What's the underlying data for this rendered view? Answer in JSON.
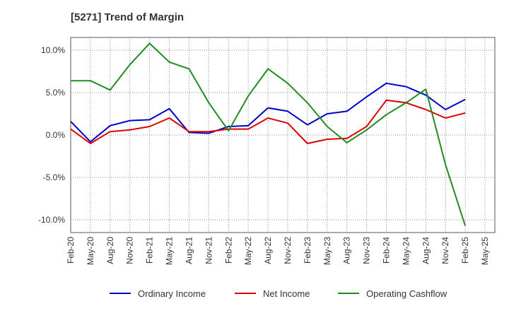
{
  "chart_data": {
    "type": "line",
    "title": "[5271]  Trend of Margin",
    "xlabel": "",
    "ylabel": "",
    "ylim": [
      -11.5,
      11.5
    ],
    "y_ticks": [
      10,
      5,
      0,
      -5,
      -10
    ],
    "y_tick_labels": [
      "10.0%",
      "5.0%",
      "0.0%",
      "-5.0%",
      "-10.0%"
    ],
    "grid": true,
    "legend_position": "bottom",
    "categories": [
      "Feb-20",
      "May-20",
      "Aug-20",
      "Nov-20",
      "Feb-21",
      "May-21",
      "Aug-21",
      "Nov-21",
      "Feb-22",
      "May-22",
      "Aug-22",
      "Nov-22",
      "Feb-23",
      "May-23",
      "Aug-23",
      "Nov-23",
      "Feb-24",
      "May-24",
      "Aug-24",
      "Nov-24",
      "Feb-25",
      "May-25"
    ],
    "series": [
      {
        "name": "Ordinary Income",
        "color": "#0000cc",
        "values": [
          1.6,
          -0.8,
          1.1,
          1.7,
          1.8,
          3.1,
          0.3,
          0.2,
          1.0,
          1.1,
          3.2,
          2.8,
          1.2,
          2.5,
          2.8,
          4.5,
          6.1,
          5.7,
          4.7,
          3.0,
          4.2,
          null
        ]
      },
      {
        "name": "Net Income",
        "color": "#dd0000",
        "values": [
          0.7,
          -1.0,
          0.4,
          0.6,
          1.0,
          2.0,
          0.4,
          0.4,
          0.7,
          0.7,
          2.0,
          1.4,
          -1.0,
          -0.5,
          -0.4,
          1.0,
          4.1,
          3.8,
          3.0,
          2.0,
          2.6,
          null
        ]
      },
      {
        "name": "Operating Cashflow",
        "color": "#228b22",
        "values": [
          6.4,
          6.4,
          5.3,
          8.3,
          10.8,
          8.6,
          7.8,
          3.8,
          0.5,
          4.6,
          7.8,
          6.1,
          3.8,
          1.0,
          -0.9,
          0.6,
          2.4,
          3.8,
          5.4,
          -3.5,
          -10.7,
          null
        ]
      }
    ]
  }
}
